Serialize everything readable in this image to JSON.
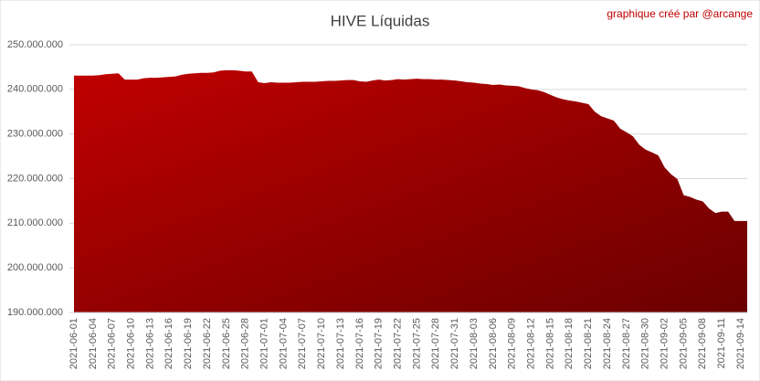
{
  "chart_data": {
    "type": "area",
    "title": "HIVE Líquidas",
    "annotation": "graphique créé par @arcange",
    "color": "#c00000",
    "grid": true,
    "ylim": [
      190000000,
      250000000
    ],
    "yticks": [
      {
        "value": 190000000,
        "label": "190.000.000"
      },
      {
        "value": 200000000,
        "label": "200.000.000"
      },
      {
        "value": 210000000,
        "label": "210.000.000"
      },
      {
        "value": 220000000,
        "label": "220.000.000"
      },
      {
        "value": 230000000,
        "label": "230.000.000"
      },
      {
        "value": 240000000,
        "label": "240.000.000"
      },
      {
        "value": 250000000,
        "label": "250.000.000"
      }
    ],
    "categories": [
      "2021-06-01",
      null,
      null,
      "2021-06-04",
      null,
      null,
      "2021-06-07",
      null,
      null,
      "2021-06-10",
      null,
      null,
      "2021-06-13",
      null,
      null,
      "2021-06-16",
      null,
      null,
      "2021-06-19",
      null,
      null,
      "2021-06-22",
      null,
      null,
      "2021-06-25",
      null,
      null,
      "2021-06-28",
      null,
      null,
      "2021-07-01",
      null,
      null,
      "2021-07-04",
      null,
      null,
      "2021-07-07",
      null,
      null,
      "2021-07-10",
      null,
      null,
      "2021-07-13",
      null,
      null,
      "2021-07-16",
      null,
      null,
      "2021-07-19",
      null,
      null,
      "2021-07-22",
      null,
      null,
      "2021-07-25",
      null,
      null,
      "2021-07-28",
      null,
      null,
      "2021-07-31",
      null,
      null,
      "2021-08-03",
      null,
      null,
      "2021-08-06",
      null,
      null,
      "2021-08-09",
      null,
      null,
      "2021-08-12",
      null,
      null,
      "2021-08-15",
      null,
      null,
      "2021-08-18",
      null,
      null,
      "2021-08-21",
      null,
      null,
      "2021-08-24",
      null,
      null,
      "2021-08-27",
      null,
      null,
      "2021-08-30",
      null,
      null,
      "2021-09-02",
      null,
      null,
      "2021-09-05",
      null,
      null,
      "2021-09-08",
      null,
      null,
      "2021-09-11",
      null,
      null,
      "2021-09-14",
      null
    ],
    "values": [
      243100000,
      243100000,
      243100000,
      243100000,
      243200000,
      243400000,
      243500000,
      243600000,
      242200000,
      242200000,
      242200000,
      242500000,
      242600000,
      242600000,
      242700000,
      242800000,
      242900000,
      243300000,
      243500000,
      243600000,
      243700000,
      243700000,
      243800000,
      244200000,
      244300000,
      244300000,
      244200000,
      244000000,
      244000000,
      241600000,
      241400000,
      241600000,
      241500000,
      241500000,
      241500000,
      241600000,
      241700000,
      241700000,
      241700000,
      241800000,
      241900000,
      241900000,
      242000000,
      242100000,
      242100000,
      241800000,
      241700000,
      242000000,
      242200000,
      242000000,
      242100000,
      242300000,
      242200000,
      242300000,
      242400000,
      242300000,
      242300000,
      242200000,
      242200000,
      242100000,
      242000000,
      241800000,
      241600000,
      241500000,
      241300000,
      241200000,
      241000000,
      241100000,
      240900000,
      240800000,
      240700000,
      240300000,
      240000000,
      239800000,
      239400000,
      238800000,
      238200000,
      237800000,
      237500000,
      237300000,
      237000000,
      236700000,
      235000000,
      234000000,
      233500000,
      233000000,
      231200000,
      230400000,
      229500000,
      227600000,
      226500000,
      225900000,
      225200000,
      222500000,
      221000000,
      219900000,
      216300000,
      215900000,
      215300000,
      214900000,
      213300000,
      212300000,
      212600000,
      212600000,
      210500000,
      210500000,
      210500000
    ]
  }
}
